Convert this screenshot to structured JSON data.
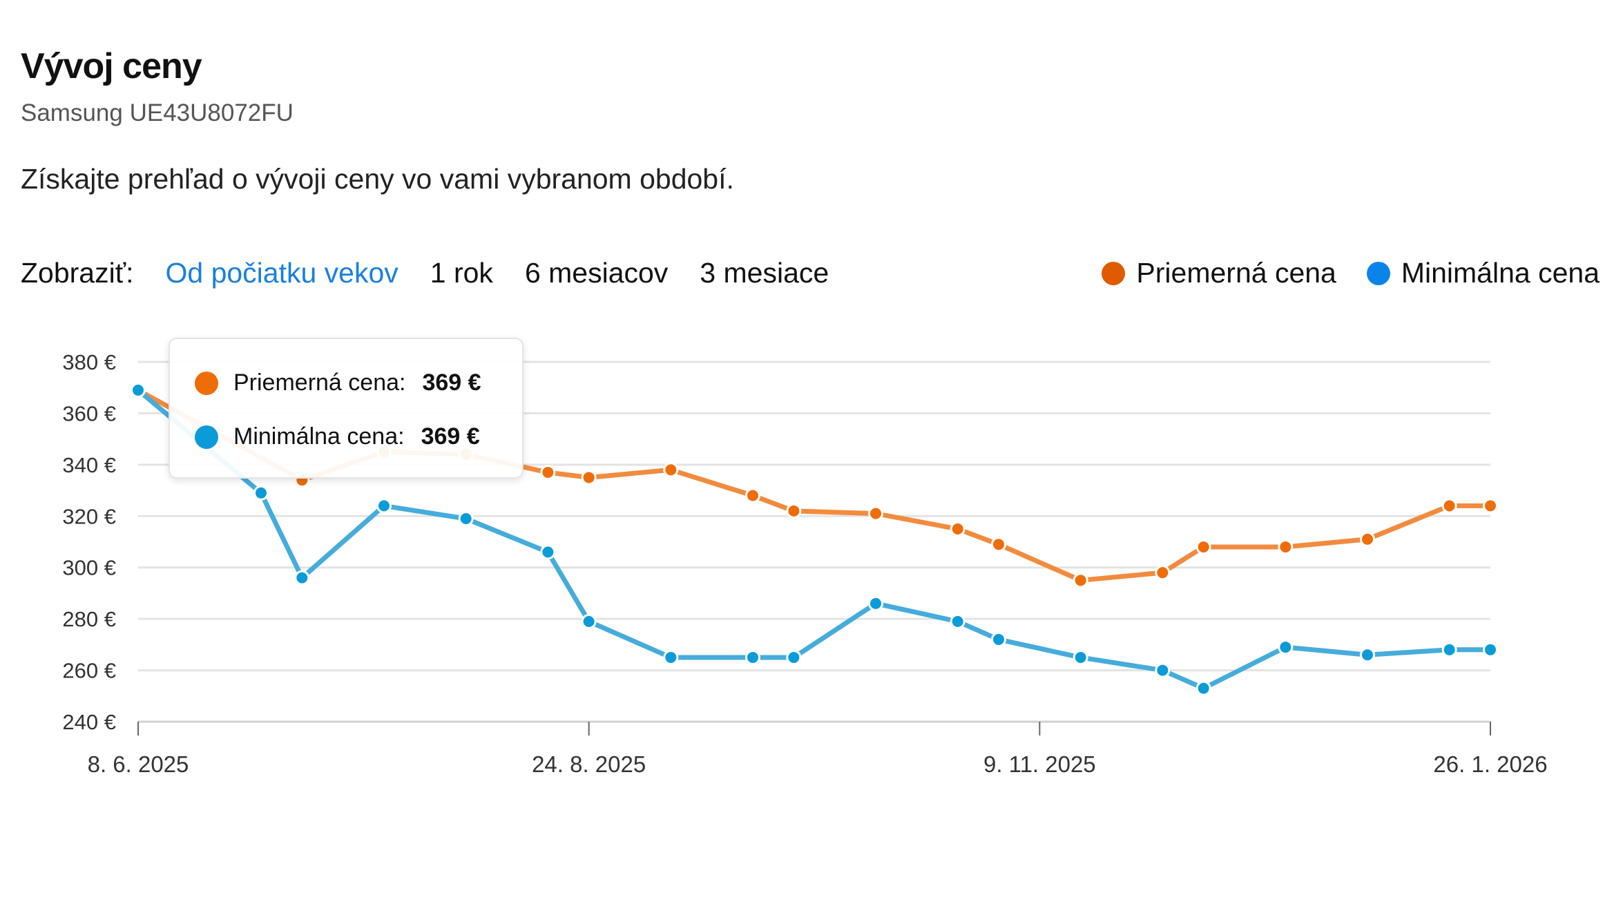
{
  "header": {
    "title": "Vývoj ceny",
    "subtitle": "Samsung UE43U8072FU",
    "description": "Získajte prehľad o vývoji ceny vo vami vybranom období."
  },
  "filters": {
    "label": "Zobraziť:",
    "options": [
      "Od počiatku vekov",
      "1 rok",
      "6 mesiacov",
      "3 mesiace"
    ],
    "active": "Od počiatku vekov"
  },
  "colors": {
    "avg_legend": "#e05a00",
    "min_legend": "#0a84e8",
    "avg_line": "#f28b3e",
    "avg_point": "#ee6d08",
    "min_line": "#45acdc",
    "min_point": "#0b9bd8",
    "link": "#1a7fe0"
  },
  "tooltip": {
    "rows": [
      {
        "label": "Priemerná cena:",
        "value": "369 €"
      },
      {
        "label": "Minimálna cena:",
        "value": "369 €"
      }
    ]
  },
  "chart_data": {
    "type": "line",
    "title": "",
    "xlabel": "",
    "ylabel": "",
    "x_unit": "weeks since 8. 6. 2025",
    "xlim": [
      0,
      33
    ],
    "ylim": [
      240,
      380
    ],
    "yticks": [
      240,
      260,
      280,
      300,
      320,
      340,
      360,
      380
    ],
    "ytick_labels": [
      "240 €",
      "260 €",
      "280 €",
      "300 €",
      "320 €",
      "340 €",
      "360 €",
      "380 €"
    ],
    "xticks": [
      0,
      11,
      22,
      33
    ],
    "xtick_labels": [
      "8. 6. 2025",
      "24. 8. 2025",
      "9. 11. 2025",
      "26. 1. 2026"
    ],
    "grid": true,
    "legend": "top-right",
    "series": [
      {
        "name": "Priemerná cena",
        "x": [
          0,
          4,
          6,
          8,
          10,
          11,
          13,
          15,
          16,
          18,
          20,
          21,
          23,
          25,
          26,
          28,
          30,
          32,
          33
        ],
        "values": [
          369,
          334,
          345,
          344,
          337,
          335,
          338,
          328,
          322,
          321,
          315,
          309,
          295,
          298,
          308,
          308,
          311,
          324,
          324
        ]
      },
      {
        "name": "Minimálna cena",
        "x": [
          0,
          3,
          4,
          6,
          8,
          10,
          11,
          13,
          15,
          16,
          18,
          20,
          21,
          23,
          25,
          26,
          28,
          30,
          32,
          33
        ],
        "values": [
          369,
          329,
          296,
          324,
          319,
          306,
          279,
          265,
          265,
          265,
          286,
          279,
          272,
          265,
          260,
          253,
          269,
          266,
          268,
          268
        ]
      }
    ]
  }
}
